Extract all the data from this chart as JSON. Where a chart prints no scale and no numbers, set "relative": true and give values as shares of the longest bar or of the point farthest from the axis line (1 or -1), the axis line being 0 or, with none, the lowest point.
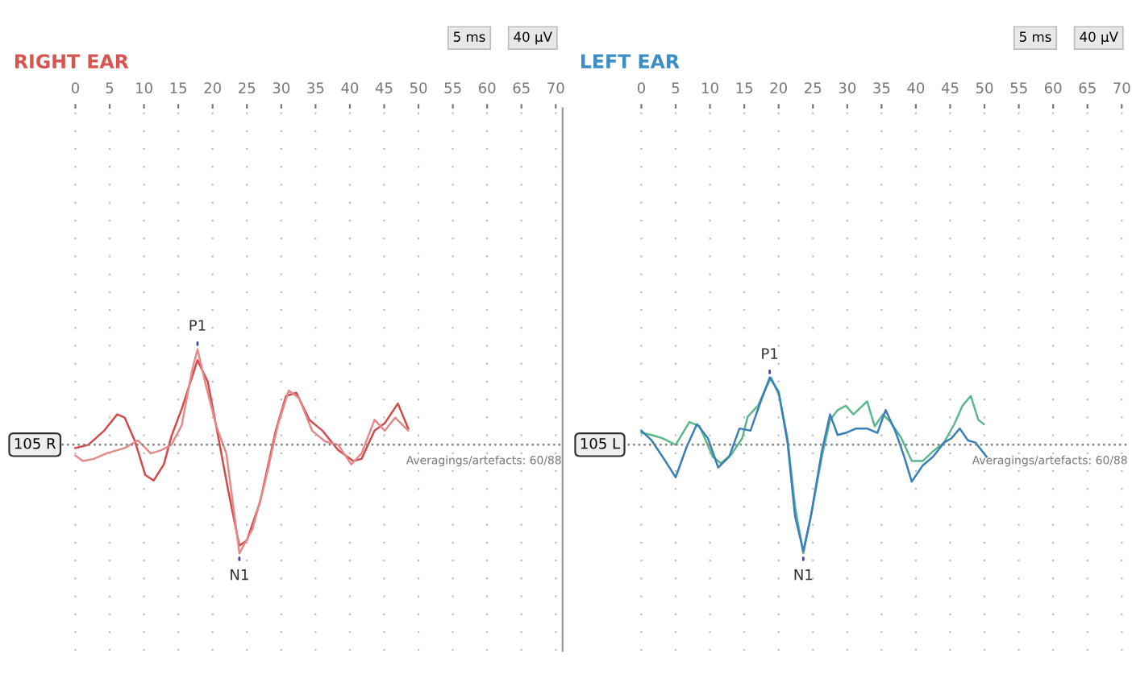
{
  "chart_data": [
    {
      "type": "line",
      "title": "RIGHT EAR",
      "relative": true,
      "xlim": [
        -9,
        71
      ],
      "xticks": [
        0,
        5,
        10,
        15,
        20,
        25,
        30,
        35,
        40,
        45,
        50,
        55,
        60,
        65,
        70
      ],
      "grid": "x",
      "marker": "none",
      "line_style": "solid",
      "series": [
        {
          "color": "#d24a4a",
          "x": [
            0,
            1.9,
            4.2,
            6.1,
            7.2,
            8.7,
            10.2,
            11.4,
            12.9,
            14,
            15.5,
            17.8,
            19.3,
            20.8,
            22.3,
            23.9,
            25,
            26.9,
            29.2,
            30.7,
            32.2,
            34.1,
            36,
            38.3,
            40.5,
            41.7,
            43.6,
            45.1,
            47,
            48.5
          ],
          "values": [
            -0.03,
            0,
            0.13,
            0.28,
            0.25,
            0.03,
            -0.28,
            -0.33,
            -0.18,
            0.08,
            0.33,
            0.78,
            0.58,
            0.08,
            -0.43,
            -0.93,
            -0.88,
            -0.53,
            0.13,
            0.45,
            0.48,
            0.23,
            0.13,
            -0.05,
            -0.15,
            -0.13,
            0.13,
            0.2,
            0.38,
            0.15
          ]
        },
        {
          "color": "#e48a8a",
          "x": [
            0,
            1.1,
            2.7,
            4.5,
            7.2,
            9.1,
            11,
            12.5,
            14,
            15.5,
            17,
            17.8,
            18.9,
            20.5,
            22,
            23.5,
            23.9,
            25.8,
            27.7,
            29.5,
            31.1,
            32.6,
            34.5,
            36.4,
            38.3,
            40.2,
            41.7,
            43.6,
            45.1,
            46.6,
            48.5
          ],
          "values": [
            -0.1,
            -0.15,
            -0.13,
            -0.08,
            -0.03,
            0.04,
            -0.08,
            -0.05,
            0,
            0.18,
            0.68,
            0.88,
            0.58,
            0.18,
            -0.08,
            -0.8,
            -1,
            -0.78,
            -0.33,
            0.18,
            0.5,
            0.43,
            0.13,
            0.03,
            0,
            -0.18,
            -0.08,
            0.23,
            0.13,
            0.25,
            0.13
          ]
        }
      ],
      "ref_lines": [
        {
          "axis": "y",
          "value": 0,
          "color": "#808080",
          "line_style": "dotted"
        }
      ],
      "annotations": [
        {
          "text": "P1",
          "x": 17.8,
          "y": 0.88
        },
        {
          "text": "N1",
          "x": 23.9,
          "y": -1
        },
        "105 R",
        "Averagings/artefacts: 60/88",
        "5 ms",
        "40 µV"
      ]
    },
    {
      "type": "line",
      "title": "LEFT EAR",
      "relative": true,
      "xlim": [
        -9,
        71
      ],
      "xticks": [
        0,
        5,
        10,
        15,
        20,
        25,
        30,
        35,
        40,
        45,
        50,
        55,
        60,
        65,
        70
      ],
      "grid": "x",
      "marker": "none",
      "line_style": "solid",
      "series": [
        {
          "color": "#5cb88a",
          "x": [
            0,
            1.5,
            3.1,
            5,
            7,
            8.5,
            10.4,
            11.6,
            13.1,
            14.7,
            15.5,
            17,
            18.2,
            18.9,
            20.1,
            21.3,
            22.4,
            23.6,
            24.7,
            26.3,
            27.5,
            28.6,
            29.8,
            30.9,
            32.9,
            34,
            35.2,
            36.3,
            37.9,
            39.4,
            41,
            42.5,
            44.1,
            45.6,
            46.8,
            48,
            49.1,
            49.9
          ],
          "values": [
            0.11,
            0.09,
            0.06,
            0,
            0.21,
            0.17,
            -0.11,
            -0.17,
            -0.09,
            0.06,
            0.26,
            0.36,
            0.53,
            0.62,
            0.45,
            0.06,
            -0.57,
            -1,
            -0.66,
            -0.11,
            0.23,
            0.32,
            0.36,
            0.28,
            0.4,
            0.17,
            0.28,
            0.21,
            0.06,
            -0.15,
            -0.15,
            -0.06,
            0.02,
            0.19,
            0.36,
            0.45,
            0.23,
            0.19
          ]
        },
        {
          "color": "#3a7fb8",
          "x": [
            0,
            1.5,
            3.5,
            5,
            6.6,
            8.1,
            9.7,
            11.2,
            12.8,
            14.3,
            15.9,
            17.4,
            18.7,
            20,
            21.3,
            22.4,
            23.6,
            24.7,
            26.3,
            27.5,
            28.6,
            29.8,
            31.3,
            32.9,
            34.4,
            35.6,
            37.1,
            38.3,
            39.4,
            41,
            42.5,
            44.1,
            45.2,
            46.4,
            47.6,
            48.7,
            50.3
          ],
          "values": [
            0.13,
            0.04,
            -0.15,
            -0.3,
            -0.02,
            0.19,
            0.06,
            -0.21,
            -0.11,
            0.15,
            0.13,
            0.4,
            0.62,
            0.49,
            0.02,
            -0.66,
            -0.98,
            -0.66,
            -0.06,
            0.28,
            0.09,
            0.11,
            0.15,
            0.15,
            0.11,
            0.32,
            0.11,
            -0.11,
            -0.34,
            -0.19,
            -0.11,
            0.02,
            0.06,
            0.15,
            0.04,
            0.02,
            -0.11
          ]
        }
      ],
      "ref_lines": [
        {
          "axis": "y",
          "value": 0,
          "color": "#808080",
          "line_style": "dotted"
        }
      ],
      "annotations": [
        {
          "text": "P1",
          "x": 18.7,
          "y": 0.62
        },
        {
          "text": "N1",
          "x": 23.6,
          "y": -1
        },
        "105 L",
        "Averagings/artefacts: 60/88",
        "5 ms",
        "40 µV"
      ]
    }
  ]
}
